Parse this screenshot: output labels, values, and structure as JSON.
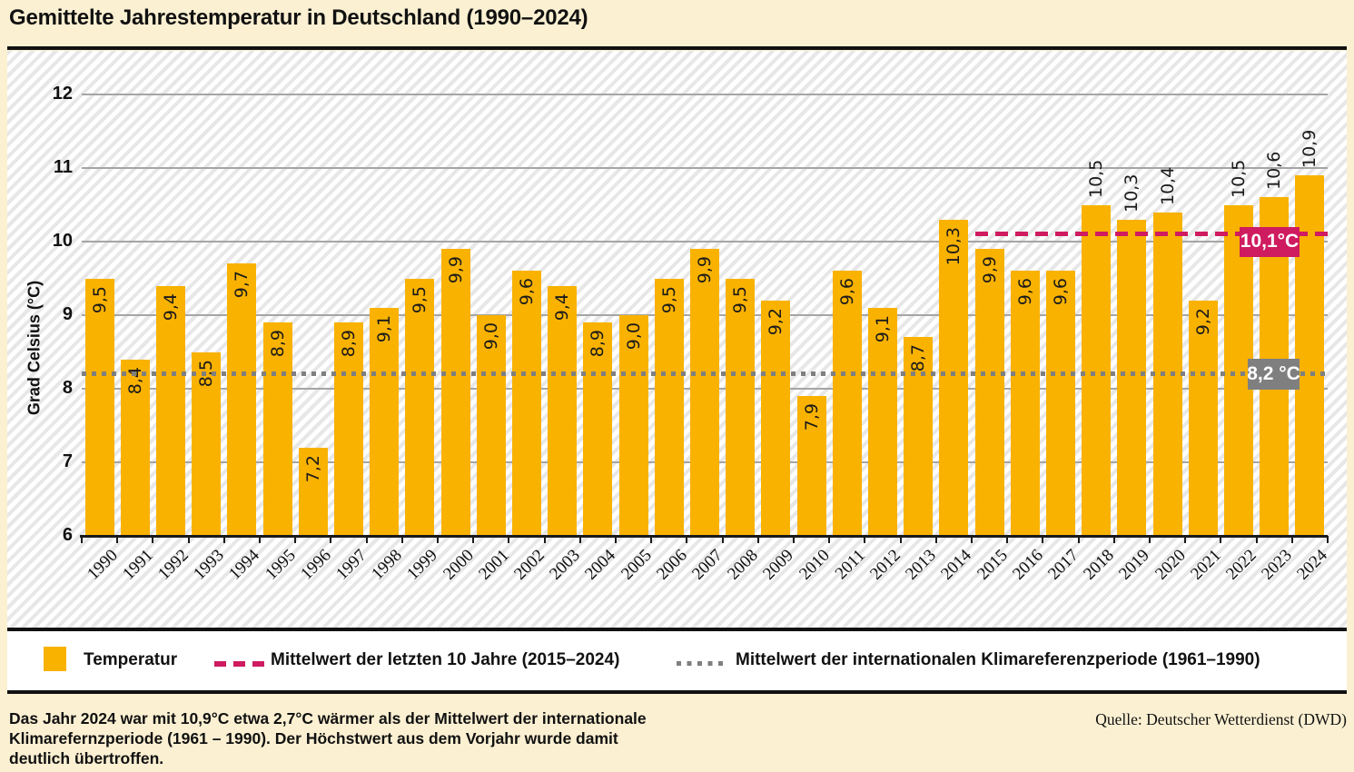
{
  "title": "Gemittelte Jahrestemperatur in Deutschland (1990–2024)",
  "colors": {
    "background": "#FBF0D2",
    "bar": "#F9B200",
    "mean10_line": "#CF1B60",
    "reference_line": "#7F7F7F",
    "gridline": "#A5A5A5"
  },
  "chart_data": {
    "type": "bar",
    "title": "Gemittelte Jahrestemperatur in Deutschland (1990–2024)",
    "xlabel": "",
    "ylabel": "Grad Celsius (°C)",
    "ylim": [
      6,
      12
    ],
    "yticks": [
      6,
      7,
      8,
      9,
      10,
      11,
      12
    ],
    "grid": true,
    "legend_position": "bottom",
    "categories": [
      "1990",
      "1991",
      "1992",
      "1993",
      "1994",
      "1995",
      "1996",
      "1997",
      "1998",
      "1999",
      "2000",
      "2001",
      "2002",
      "2003",
      "2004",
      "2005",
      "2006",
      "2007",
      "2008",
      "2009",
      "2010",
      "2011",
      "2012",
      "2013",
      "2014",
      "2015",
      "2016",
      "2017",
      "2018",
      "2019",
      "2020",
      "2021",
      "2022",
      "2023",
      "2024"
    ],
    "values": [
      9.5,
      8.4,
      9.4,
      8.5,
      9.7,
      8.9,
      7.2,
      8.9,
      9.1,
      9.5,
      9.9,
      9.0,
      9.6,
      9.4,
      8.9,
      9.0,
      9.5,
      9.9,
      9.5,
      9.2,
      7.9,
      9.6,
      9.1,
      8.7,
      10.3,
      9.9,
      9.6,
      9.6,
      10.5,
      10.3,
      10.4,
      9.2,
      10.5,
      10.6,
      10.9
    ],
    "label_above_years": [
      "2018",
      "2019",
      "2020",
      "2022",
      "2023",
      "2024"
    ],
    "reference_lines": [
      {
        "id": "mean10",
        "legend": "Mittelwert der letzten 10 Jahre (2015–2024)",
        "value": 10.1,
        "label": "10,1°C",
        "style": "dashed",
        "color": "#CF1B60",
        "from_year": "2015"
      },
      {
        "id": "refperiod",
        "legend": "Mittelwert der internationalen Klimareferenzperiode (1961–1990)",
        "value": 8.2,
        "label": "8,2 °C",
        "style": "dotted",
        "color": "#7F7F7F",
        "from_year": "1990"
      }
    ]
  },
  "legend": {
    "temperature_label": "Temperatur",
    "mean10_label": "Mittelwert der letzten 10 Jahre (2015–2024)",
    "reference_label": "Mittelwert der internationalen Klimareferenzperiode (1961–1990)"
  },
  "footer": {
    "note_lines": [
      "Das Jahr 2024 war mit 10,9°C  etwa 2,7°C wärmer als der Mittelwert der internationale",
      "Klimarefernzperiode (1961 – 1990). Der Höchstwert aus dem Vorjahr wurde damit",
      "deutlich übertroffen."
    ],
    "source": "Quelle: Deutscher Wetterdienst (DWD)"
  }
}
